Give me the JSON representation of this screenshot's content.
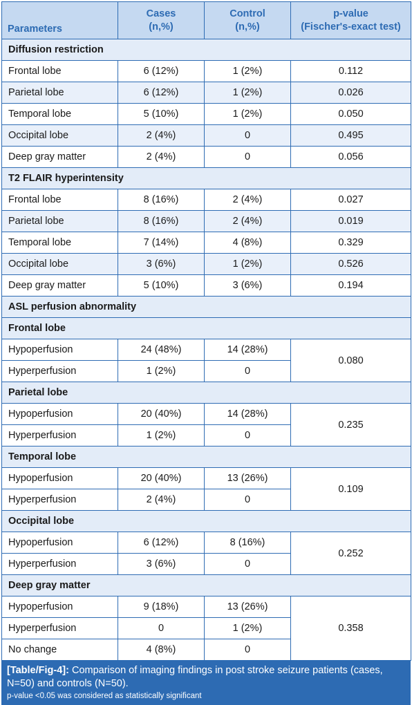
{
  "header": {
    "parameters": "Parameters",
    "cases_l1": "Cases",
    "cases_l2": "(n,%)",
    "control_l1": "Control",
    "control_l2": "(n,%)",
    "p_l1": "p-value",
    "p_l2": "(Fischer's-exact test)"
  },
  "dr": {
    "title": "Diffusion restriction",
    "rows": [
      {
        "label": "Frontal lobe",
        "cases": "6 (12%)",
        "control": "1 (2%)",
        "p": "0.112"
      },
      {
        "label": "Parietal lobe",
        "cases": "6 (12%)",
        "control": "1 (2%)",
        "p": "0.026"
      },
      {
        "label": "Temporal lobe",
        "cases": "5 (10%)",
        "control": "1 (2%)",
        "p": "0.050"
      },
      {
        "label": "Occipital lobe",
        "cases": "2 (4%)",
        "control": "0",
        "p": "0.495"
      },
      {
        "label": "Deep gray matter",
        "cases": "2 (4%)",
        "control": "0",
        "p": "0.056"
      }
    ]
  },
  "t2": {
    "title": "T2 FLAIR hyperintensity",
    "rows": [
      {
        "label": "Frontal lobe",
        "cases": "8 (16%)",
        "control": "2 (4%)",
        "p": "0.027"
      },
      {
        "label": "Parietal lobe",
        "cases": "8 (16%)",
        "control": "2 (4%)",
        "p": "0.019"
      },
      {
        "label": "Temporal lobe",
        "cases": "7 (14%)",
        "control": "4 (8%)",
        "p": "0.329"
      },
      {
        "label": "Occipital lobe",
        "cases": "3 (6%)",
        "control": "1 (2%)",
        "p": "0.526"
      },
      {
        "label": "Deep gray matter",
        "cases": "5 (10%)",
        "control": "3 (6%)",
        "p": "0.194"
      }
    ]
  },
  "asl": {
    "title": "ASL perfusion abnormality",
    "frontal": {
      "title": "Frontal lobe",
      "p": "0.080",
      "rows": [
        {
          "label": "Hypoperfusion",
          "cases": "24 (48%)",
          "control": "14 (28%)"
        },
        {
          "label": "Hyperperfusion",
          "cases": "1 (2%)",
          "control": "0"
        }
      ]
    },
    "parietal": {
      "title": "Parietal lobe",
      "p": "0.235",
      "rows": [
        {
          "label": "Hypoperfusion",
          "cases": "20 (40%)",
          "control": "14 (28%)"
        },
        {
          "label": "Hyperperfusion",
          "cases": "1 (2%)",
          "control": "0"
        }
      ]
    },
    "temporal": {
      "title": "Temporal lobe",
      "p": "0.109",
      "rows": [
        {
          "label": "Hypoperfusion",
          "cases": "20 (40%)",
          "control": "13 (26%)"
        },
        {
          "label": "Hyperperfusion",
          "cases": "2 (4%)",
          "control": "0"
        }
      ]
    },
    "occipital": {
      "title": "Occipital lobe",
      "p": "0.252",
      "rows": [
        {
          "label": "Hypoperfusion",
          "cases": "6 (12%)",
          "control": "8 (16%)"
        },
        {
          "label": "Hyperperfusion",
          "cases": "3 (6%)",
          "control": "0"
        }
      ]
    },
    "deep": {
      "title": "Deep gray matter",
      "p": "0.358",
      "rows": [
        {
          "label": "Hypoperfusion",
          "cases": "9 (18%)",
          "control": "13 (26%)"
        },
        {
          "label": "Hyperperfusion",
          "cases": "0",
          "control": "1 (2%)"
        },
        {
          "label": "No change",
          "cases": "4 (8%)",
          "control": "0"
        }
      ]
    }
  },
  "caption": {
    "tag": "[Table/Fig-4]:",
    "text": " Comparison of imaging findings in post stroke seizure patients (cases, N=50) and controls (N=50).",
    "note": "p-value <0.05 was considered as statistically significant"
  },
  "colors": {
    "accent": "#2d6bb3",
    "header_bg": "#c5d9f1",
    "section_bg": "#e3ecf8",
    "alt_row_bg": "#e9f0fa"
  }
}
